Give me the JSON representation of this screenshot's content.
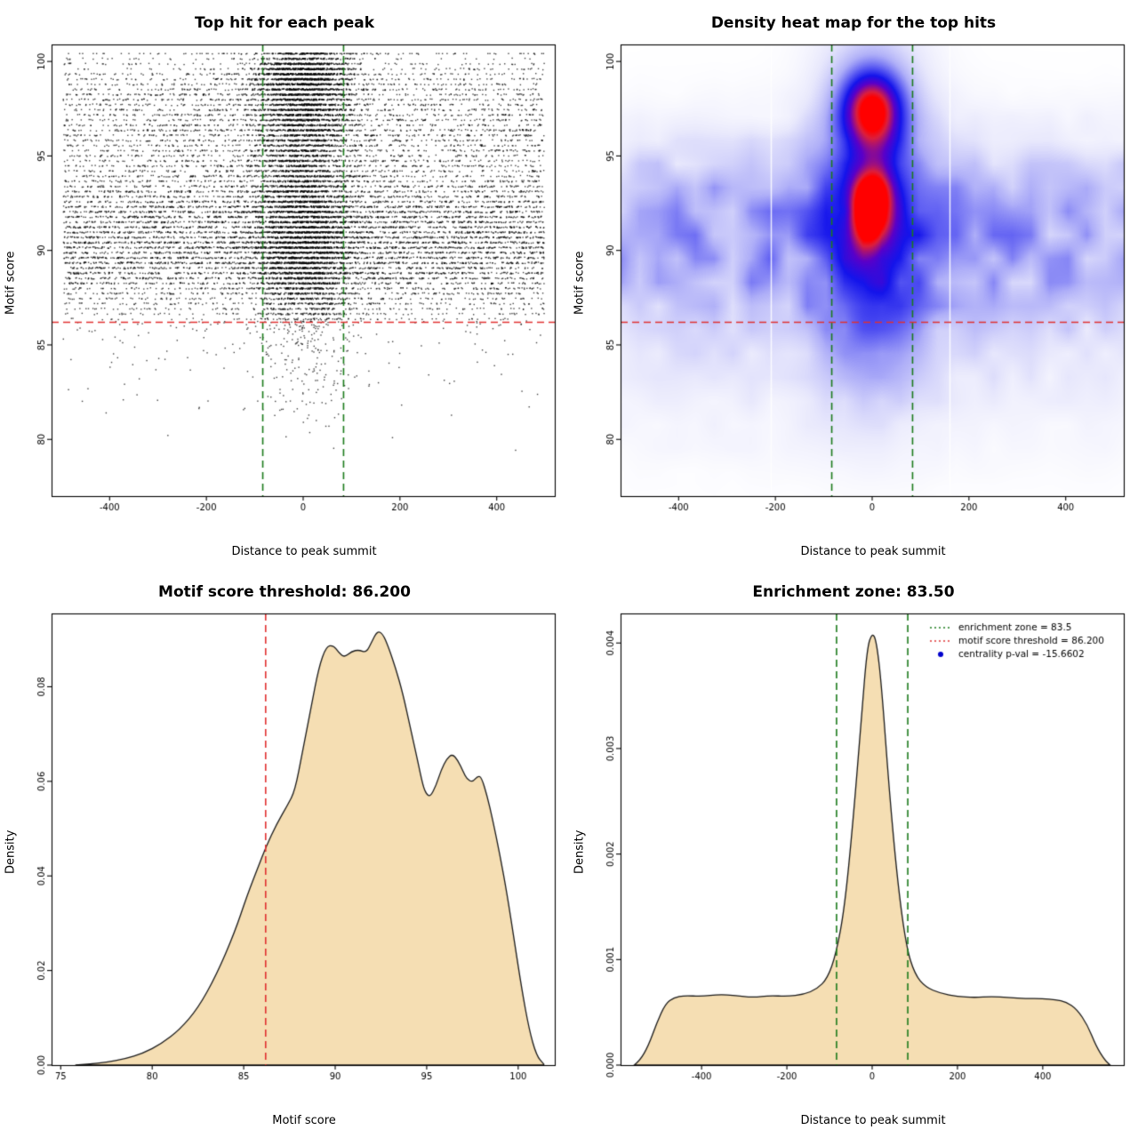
{
  "page": {
    "background": "#ffffff"
  },
  "chart_data": [
    {
      "type": "scatter",
      "title": "Top hit for each peak",
      "xlabel": "Distance to peak summit",
      "ylabel": "Motif score",
      "xlim": [
        -520,
        520
      ],
      "ylim": [
        77.0,
        100.9
      ],
      "xticks": [
        -400,
        -200,
        0,
        200,
        400
      ],
      "xtick_labels": [
        "-400",
        "-200",
        "0",
        "200",
        "400"
      ],
      "yticks": [
        80,
        85,
        90,
        95,
        100
      ],
      "ytick_labels": [
        "80",
        "85",
        "90",
        "95",
        "100"
      ],
      "point_color": "#000000",
      "threshold": {
        "orientation": "h",
        "value": 86.2,
        "color": "#e03030"
      },
      "zone": {
        "orientation": "v",
        "values": [
          -83.5,
          83.5
        ],
        "color": "#1b7a1b"
      },
      "generator": {
        "seed": 42,
        "band_step": 0.27,
        "y_min": 77.8,
        "y_max": 100.45,
        "background": {
          "n": 12000,
          "x_range": [
            -497,
            497
          ],
          "below_threshold_keep": 0.3,
          "score_mixture": [
            [
              89.5,
              1.2,
              0.2
            ],
            [
              92.0,
              1.6,
              0.26
            ],
            [
              96.5,
              1.4,
              0.14
            ],
            [
              90.5,
              3.6,
              0.32
            ],
            [
              98.8,
              1.0,
              0.08
            ]
          ]
        },
        "cluster": {
          "n": 9000,
          "x_sigma": 52,
          "below_threshold_keep": 0.6,
          "score_mixture": [
            [
              97.6,
              1.6,
              0.28
            ],
            [
              92.5,
              2.2,
              0.3
            ],
            [
              89.5,
              1.6,
              0.18
            ],
            [
              99.4,
              0.6,
              0.14
            ],
            [
              87.5,
              3.0,
              0.1
            ]
          ]
        }
      }
    },
    {
      "type": "heatmap",
      "title": "Density heat map for the top hits",
      "xlabel": "Distance to peak summit",
      "ylabel": "Motif score",
      "xlim": [
        -520,
        520
      ],
      "ylim": [
        77.0,
        100.9
      ],
      "xticks": [
        -400,
        -200,
        0,
        200,
        400
      ],
      "xtick_labels": [
        "-400",
        "-200",
        "0",
        "200",
        "400"
      ],
      "yticks": [
        80,
        85,
        90,
        95,
        100
      ],
      "ytick_labels": [
        "80",
        "85",
        "90",
        "95",
        "100"
      ],
      "colormap_stops": [
        0,
        0.1,
        0.28,
        0.45,
        0.6,
        0.75,
        0.92,
        1
      ],
      "colormap": [
        "#ffffff",
        "#e8e8fc",
        "#afaff8",
        "#5a5af2",
        "#1414eb",
        "#5a00c8",
        "#dc1e3c",
        "#ff0000"
      ],
      "band": {
        "amp": 0.22
      },
      "column": {
        "amp": 0.35,
        "sx": 75
      },
      "hotspots": [
        {
          "x": 0,
          "y": 97.4,
          "sx": 42,
          "sy": 1.4,
          "amp": 0.9
        },
        {
          "x": 0,
          "y": 92.3,
          "sx": 30,
          "sy": 1.4,
          "amp": 0.8
        }
      ],
      "artifact_lines_x": [
        -210,
        160
      ],
      "threshold": {
        "orientation": "h",
        "value": 86.2,
        "color": "#e03030"
      },
      "zone": {
        "orientation": "v",
        "values": [
          -83.5,
          83.5
        ],
        "color": "#1b7a1b"
      }
    },
    {
      "type": "area",
      "title": "Motif score threshold: 86.200",
      "xlabel": "Motif score",
      "ylabel": "Density",
      "xlim": [
        74.5,
        102
      ],
      "ylim": [
        0,
        0.0955
      ],
      "xticks": [
        75,
        80,
        85,
        90,
        95,
        100
      ],
      "xtick_labels": [
        "75",
        "80",
        "85",
        "90",
        "95",
        "100"
      ],
      "yticks": [
        0,
        0.02,
        0.04,
        0.06,
        0.08
      ],
      "ytick_labels": [
        "0.00",
        "0.02",
        "0.04",
        "0.06",
        "0.08"
      ],
      "fill": "#f5deb3",
      "stroke": "#1a1a1a",
      "threshold": {
        "orientation": "v",
        "value": 86.2,
        "color": "#e03030"
      },
      "curve": [
        [
          75.8,
          0
        ],
        [
          76.5,
          0.0002
        ],
        [
          77.5,
          0.0006
        ],
        [
          78.5,
          0.0013
        ],
        [
          79.5,
          0.0025
        ],
        [
          80.5,
          0.0045
        ],
        [
          81.5,
          0.0075
        ],
        [
          82.5,
          0.012
        ],
        [
          83.5,
          0.019
        ],
        [
          84.5,
          0.028
        ],
        [
          85.2,
          0.036
        ],
        [
          85.8,
          0.042
        ],
        [
          86.2,
          0.046
        ],
        [
          86.8,
          0.051
        ],
        [
          87.4,
          0.055
        ],
        [
          87.8,
          0.058
        ],
        [
          88.2,
          0.066
        ],
        [
          88.7,
          0.076
        ],
        [
          89.1,
          0.084
        ],
        [
          89.5,
          0.0885
        ],
        [
          89.9,
          0.0888
        ],
        [
          90.2,
          0.0872
        ],
        [
          90.5,
          0.0862
        ],
        [
          90.9,
          0.0875
        ],
        [
          91.3,
          0.0878
        ],
        [
          91.7,
          0.0872
        ],
        [
          92.0,
          0.0895
        ],
        [
          92.3,
          0.0918
        ],
        [
          92.6,
          0.0912
        ],
        [
          92.9,
          0.0885
        ],
        [
          93.3,
          0.084
        ],
        [
          93.7,
          0.0785
        ],
        [
          94.1,
          0.0715
        ],
        [
          94.5,
          0.0645
        ],
        [
          94.8,
          0.059
        ],
        [
          95.0,
          0.0572
        ],
        [
          95.2,
          0.0568
        ],
        [
          95.5,
          0.059
        ],
        [
          95.8,
          0.0625
        ],
        [
          96.1,
          0.0648
        ],
        [
          96.4,
          0.0658
        ],
        [
          96.7,
          0.0645
        ],
        [
          97.0,
          0.062
        ],
        [
          97.2,
          0.0605
        ],
        [
          97.5,
          0.0598
        ],
        [
          97.8,
          0.0612
        ],
        [
          98.0,
          0.0608
        ],
        [
          98.3,
          0.057
        ],
        [
          98.6,
          0.052
        ],
        [
          99.0,
          0.0445
        ],
        [
          99.4,
          0.036
        ],
        [
          99.8,
          0.026
        ],
        [
          100.2,
          0.016
        ],
        [
          100.6,
          0.0075
        ],
        [
          101.0,
          0.002
        ],
        [
          101.4,
          0.0002
        ]
      ]
    },
    {
      "type": "area",
      "title": "Enrichment zone: 83.50",
      "xlabel": "Distance to peak summit",
      "ylabel": "Density",
      "xlim": [
        -590,
        590
      ],
      "ylim": [
        0,
        0.00428
      ],
      "xticks": [
        -400,
        -200,
        0,
        200,
        400
      ],
      "xtick_labels": [
        "-400",
        "-200",
        "0",
        "200",
        "400"
      ],
      "yticks": [
        0,
        0.001,
        0.002,
        0.003,
        0.004
      ],
      "ytick_labels": [
        "0.000",
        "0.001",
        "0.002",
        "0.003",
        "0.004"
      ],
      "fill": "#f5deb3",
      "stroke": "#1a1a1a",
      "zone": {
        "orientation": "v",
        "values": [
          -83.5,
          83.5
        ],
        "color": "#1b7a1b"
      },
      "legend": {
        "items": [
          {
            "label": "enrichment zone = 83.5",
            "color": "#1b7a1b",
            "marker": "dotted-line"
          },
          {
            "label": "motif score threshold = 86.200",
            "color": "#e03030",
            "marker": "dotted-line"
          },
          {
            "label": "centrality p-val = -15.6602",
            "color": "#0000cc",
            "marker": "point"
          }
        ]
      },
      "curve": [
        [
          -558,
          0
        ],
        [
          -545,
          4e-05
        ],
        [
          -525,
          0.00018
        ],
        [
          -505,
          0.0004
        ],
        [
          -485,
          0.00058
        ],
        [
          -465,
          0.00064
        ],
        [
          -440,
          0.00066
        ],
        [
          -400,
          0.00065
        ],
        [
          -360,
          0.00067
        ],
        [
          -320,
          0.00066
        ],
        [
          -280,
          0.00064
        ],
        [
          -240,
          0.00066
        ],
        [
          -200,
          0.00065
        ],
        [
          -160,
          0.00067
        ],
        [
          -130,
          0.00072
        ],
        [
          -105,
          0.00082
        ],
        [
          -85,
          0.00105
        ],
        [
          -65,
          0.00148
        ],
        [
          -45,
          0.0023
        ],
        [
          -25,
          0.0033
        ],
        [
          -12,
          0.00395
        ],
        [
          0,
          0.0041
        ],
        [
          10,
          0.00402
        ],
        [
          22,
          0.0036
        ],
        [
          40,
          0.0026
        ],
        [
          60,
          0.00172
        ],
        [
          80,
          0.00112
        ],
        [
          100,
          0.00086
        ],
        [
          125,
          0.00074
        ],
        [
          160,
          0.00068
        ],
        [
          200,
          0.00065
        ],
        [
          240,
          0.00064
        ],
        [
          280,
          0.00065
        ],
        [
          320,
          0.00064
        ],
        [
          360,
          0.00063
        ],
        [
          400,
          0.00063
        ],
        [
          430,
          0.00062
        ],
        [
          455,
          0.0006
        ],
        [
          480,
          0.00053
        ],
        [
          505,
          0.00038
        ],
        [
          525,
          0.00018
        ],
        [
          545,
          5e-05
        ],
        [
          558,
          0
        ]
      ]
    }
  ]
}
